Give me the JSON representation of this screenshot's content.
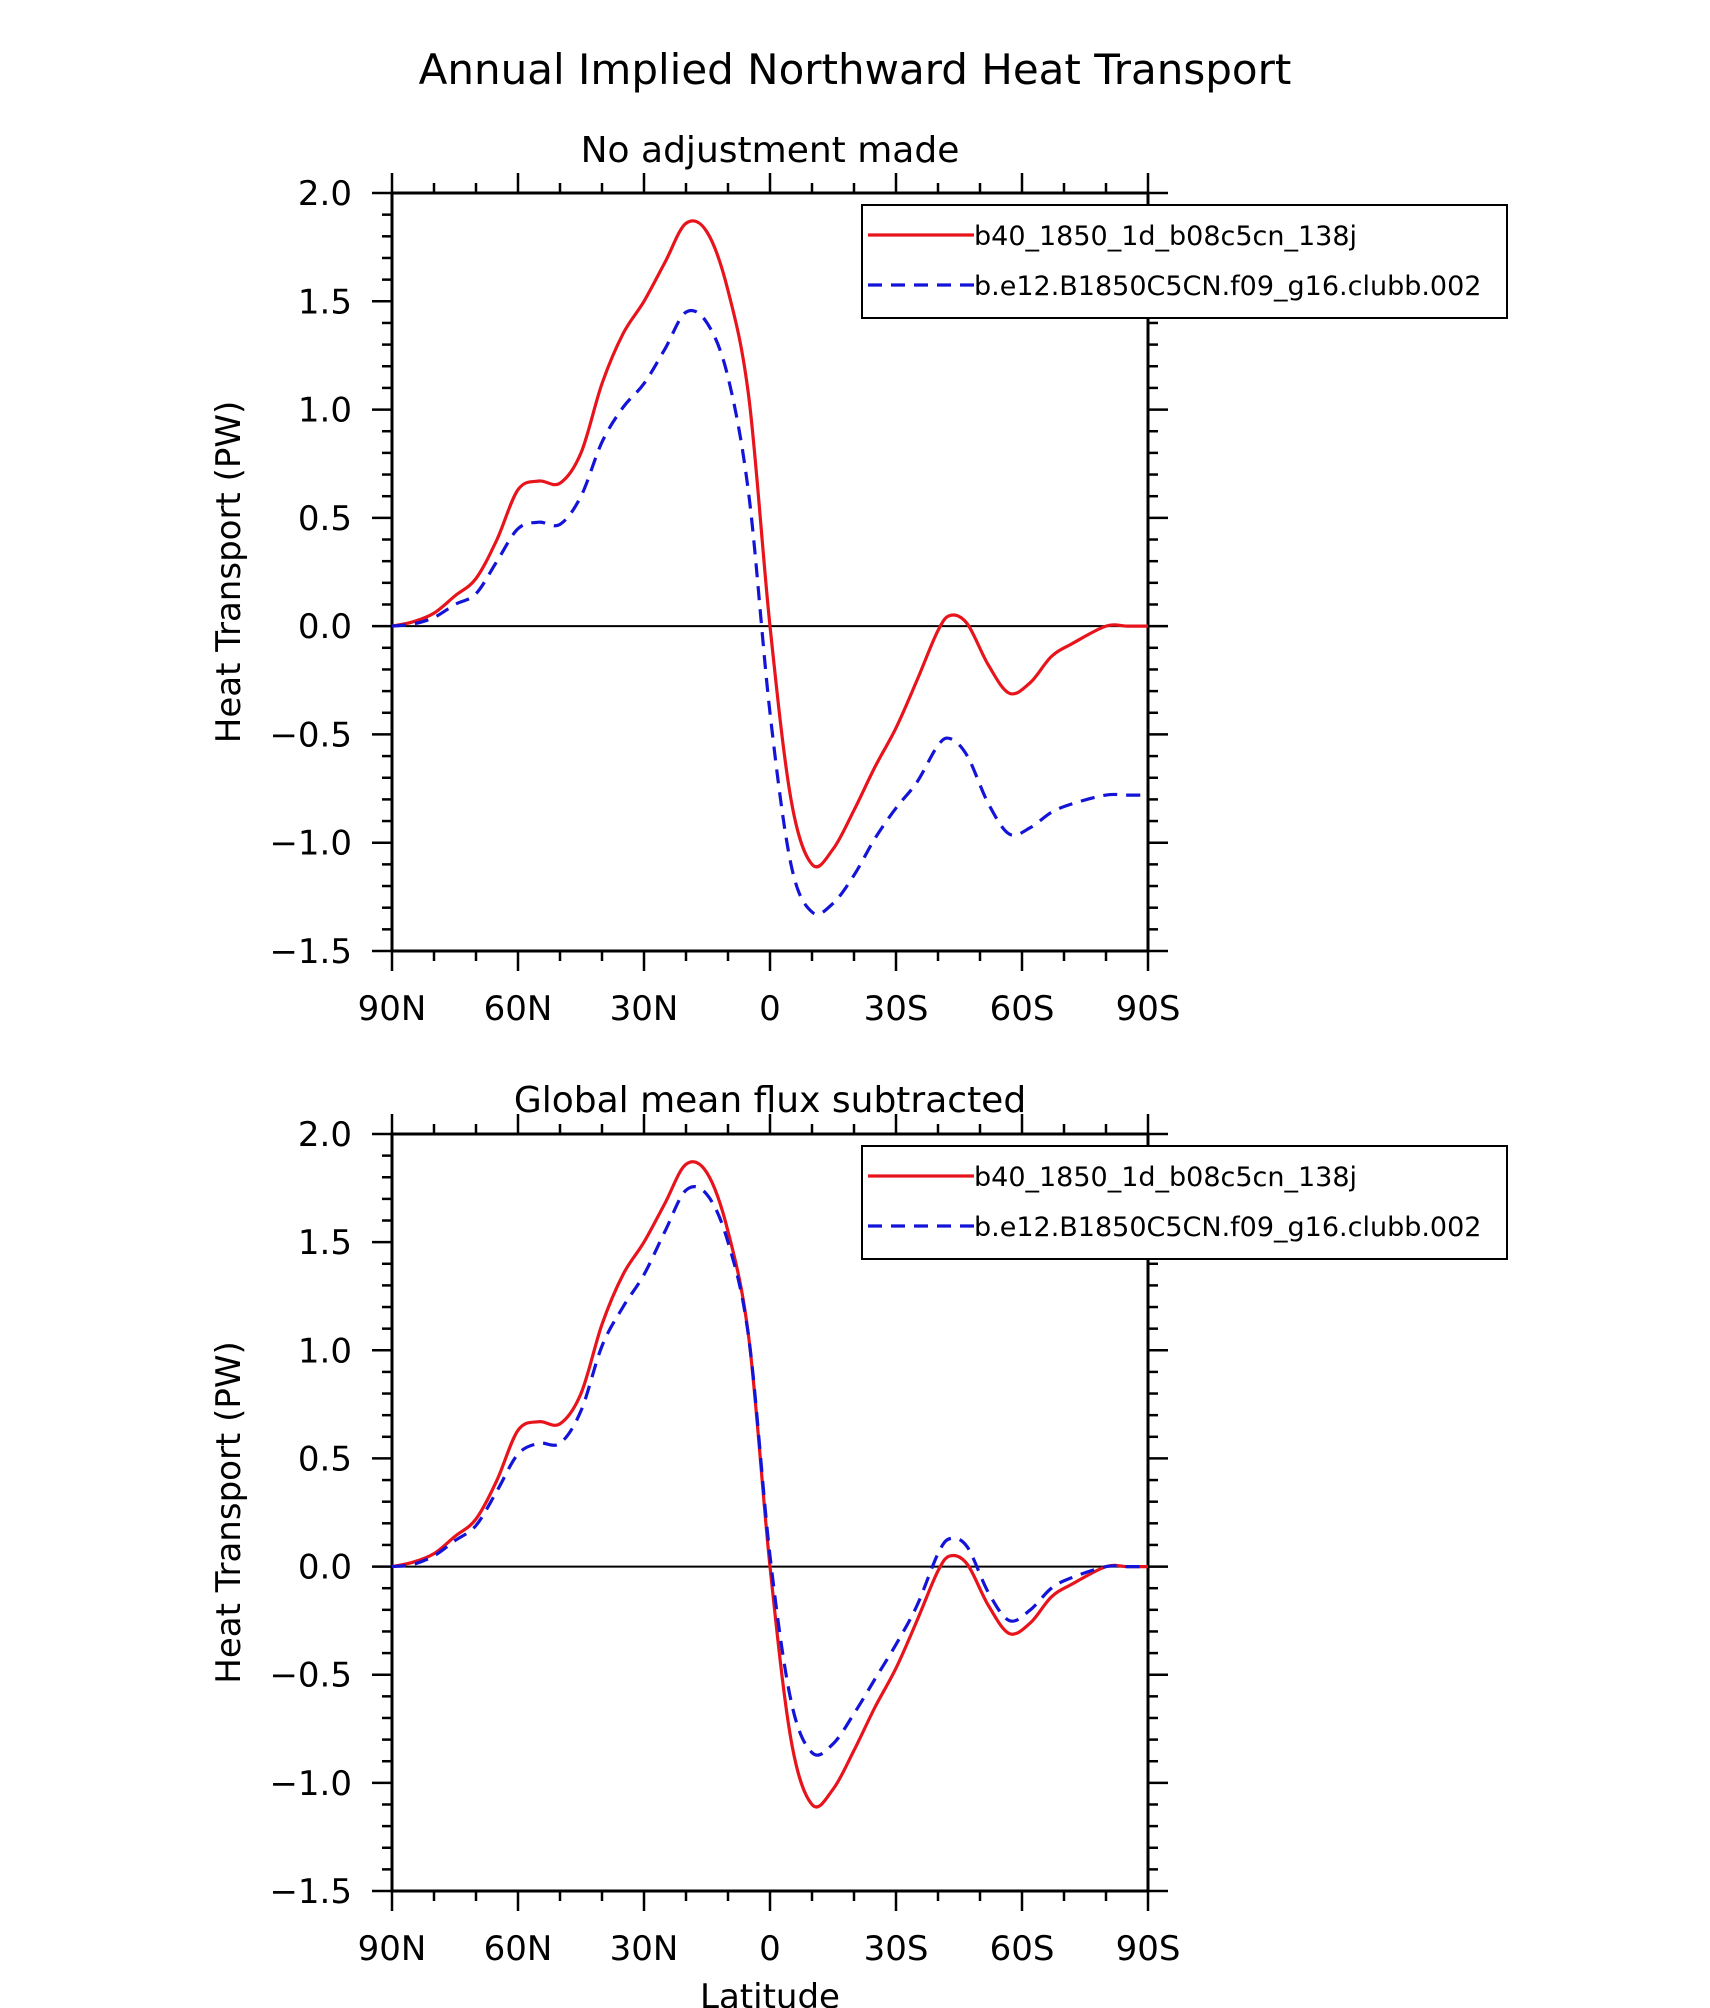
{
  "figure": {
    "title": "Annual Implied Northward Heat Transport"
  },
  "colors": {
    "series_1": "#e8141c",
    "series_2": "#1414d8",
    "axis": "#000000",
    "zero_line": "#000000"
  },
  "chart_data": [
    {
      "type": "line",
      "title": "No adjustment made",
      "xlabel": "",
      "ylabel": "Heat Transport (PW)",
      "x_unit": "latitude_deg_north",
      "xlim": [
        90,
        -90
      ],
      "ylim": [
        -1.5,
        2.0
      ],
      "x_ticks": [
        90,
        60,
        30,
        0,
        -30,
        -60,
        -90
      ],
      "x_tick_labels": [
        "90N",
        "60N",
        "30N",
        "0",
        "30S",
        "60S",
        "90S"
      ],
      "y_ticks": [
        2.0,
        1.5,
        1.0,
        0.5,
        0.0,
        -0.5,
        -1.0,
        -1.5
      ],
      "y_tick_labels": [
        "2.0",
        "1.5",
        "1.0",
        "0.5",
        "0.0",
        "−0.5",
        "−1.0",
        "−1.5"
      ],
      "legend_position": "top-right",
      "series": [
        {
          "name": "b40_1850_1d_b08c5cn_138j",
          "style": "solid",
          "x": [
            90,
            85,
            80,
            75,
            70,
            65,
            60,
            55,
            50,
            45,
            40,
            35,
            30,
            25,
            20,
            15,
            10,
            5,
            0,
            -5,
            -10,
            -15,
            -20,
            -25,
            -30,
            -35,
            -40,
            -43,
            -47,
            -52,
            -57,
            -62,
            -67,
            -72,
            -80,
            -85,
            -90
          ],
          "y": [
            0.0,
            0.02,
            0.06,
            0.14,
            0.22,
            0.4,
            0.63,
            0.67,
            0.66,
            0.8,
            1.12,
            1.35,
            1.5,
            1.68,
            1.86,
            1.82,
            1.55,
            1.05,
            0.0,
            -0.8,
            -1.1,
            -1.03,
            -0.85,
            -0.65,
            -0.47,
            -0.25,
            -0.02,
            0.05,
            0.01,
            -0.18,
            -0.31,
            -0.26,
            -0.14,
            -0.08,
            0.0,
            0.0,
            0.0
          ]
        },
        {
          "name": "b.e12.B1850C5CN.f09_g16.clubb.002",
          "style": "dashed",
          "x": [
            90,
            85,
            80,
            75,
            70,
            65,
            60,
            55,
            50,
            45,
            40,
            35,
            30,
            25,
            20,
            15,
            10,
            5,
            0,
            -5,
            -10,
            -15,
            -20,
            -25,
            -30,
            -35,
            -40,
            -43,
            -47,
            -52,
            -57,
            -62,
            -67,
            -72,
            -80,
            -85,
            -90
          ],
          "y": [
            0.0,
            0.01,
            0.04,
            0.1,
            0.15,
            0.3,
            0.45,
            0.48,
            0.47,
            0.6,
            0.85,
            1.01,
            1.12,
            1.28,
            1.45,
            1.4,
            1.15,
            0.6,
            -0.4,
            -1.1,
            -1.32,
            -1.28,
            -1.15,
            -0.98,
            -0.84,
            -0.72,
            -0.55,
            -0.52,
            -0.6,
            -0.82,
            -0.96,
            -0.93,
            -0.86,
            -0.82,
            -0.78,
            -0.78,
            -0.78
          ]
        }
      ]
    },
    {
      "type": "line",
      "title": "Global mean flux subtracted",
      "xlabel": "Latitude",
      "ylabel": "Heat Transport (PW)",
      "x_unit": "latitude_deg_north",
      "xlim": [
        90,
        -90
      ],
      "ylim": [
        -1.5,
        2.0
      ],
      "x_ticks": [
        90,
        60,
        30,
        0,
        -30,
        -60,
        -90
      ],
      "x_tick_labels": [
        "90N",
        "60N",
        "30N",
        "0",
        "30S",
        "60S",
        "90S"
      ],
      "y_ticks": [
        2.0,
        1.5,
        1.0,
        0.5,
        0.0,
        -0.5,
        -1.0,
        -1.5
      ],
      "y_tick_labels": [
        "2.0",
        "1.5",
        "1.0",
        "0.5",
        "0.0",
        "−0.5",
        "−1.0",
        "−1.5"
      ],
      "legend_position": "top-right",
      "series": [
        {
          "name": "b40_1850_1d_b08c5cn_138j",
          "style": "solid",
          "x": [
            90,
            85,
            80,
            75,
            70,
            65,
            60,
            55,
            50,
            45,
            40,
            35,
            30,
            25,
            20,
            15,
            10,
            5,
            0,
            -5,
            -10,
            -15,
            -20,
            -25,
            -30,
            -35,
            -40,
            -43,
            -47,
            -52,
            -57,
            -62,
            -67,
            -72,
            -80,
            -85,
            -90
          ],
          "y": [
            0.0,
            0.02,
            0.06,
            0.14,
            0.22,
            0.4,
            0.63,
            0.67,
            0.66,
            0.8,
            1.12,
            1.35,
            1.5,
            1.68,
            1.86,
            1.82,
            1.55,
            1.05,
            0.0,
            -0.8,
            -1.1,
            -1.03,
            -0.85,
            -0.65,
            -0.47,
            -0.25,
            -0.02,
            0.05,
            0.01,
            -0.18,
            -0.31,
            -0.26,
            -0.14,
            -0.08,
            0.0,
            0.0,
            0.0
          ]
        },
        {
          "name": "b.e12.B1850C5CN.f09_g16.clubb.002",
          "style": "dashed",
          "x": [
            90,
            85,
            80,
            75,
            70,
            65,
            60,
            55,
            50,
            45,
            40,
            35,
            30,
            25,
            20,
            15,
            10,
            5,
            0,
            -5,
            -10,
            -15,
            -20,
            -25,
            -30,
            -35,
            -40,
            -43,
            -47,
            -52,
            -57,
            -62,
            -67,
            -72,
            -80,
            -85,
            -90
          ],
          "y": [
            0.0,
            0.01,
            0.05,
            0.12,
            0.19,
            0.35,
            0.52,
            0.57,
            0.57,
            0.72,
            1.02,
            1.2,
            1.35,
            1.55,
            1.74,
            1.72,
            1.5,
            1.05,
            0.05,
            -0.62,
            -0.86,
            -0.82,
            -0.68,
            -0.52,
            -0.36,
            -0.18,
            0.06,
            0.13,
            0.09,
            -0.12,
            -0.25,
            -0.2,
            -0.1,
            -0.05,
            0.0,
            0.0,
            0.0
          ]
        }
      ]
    }
  ]
}
